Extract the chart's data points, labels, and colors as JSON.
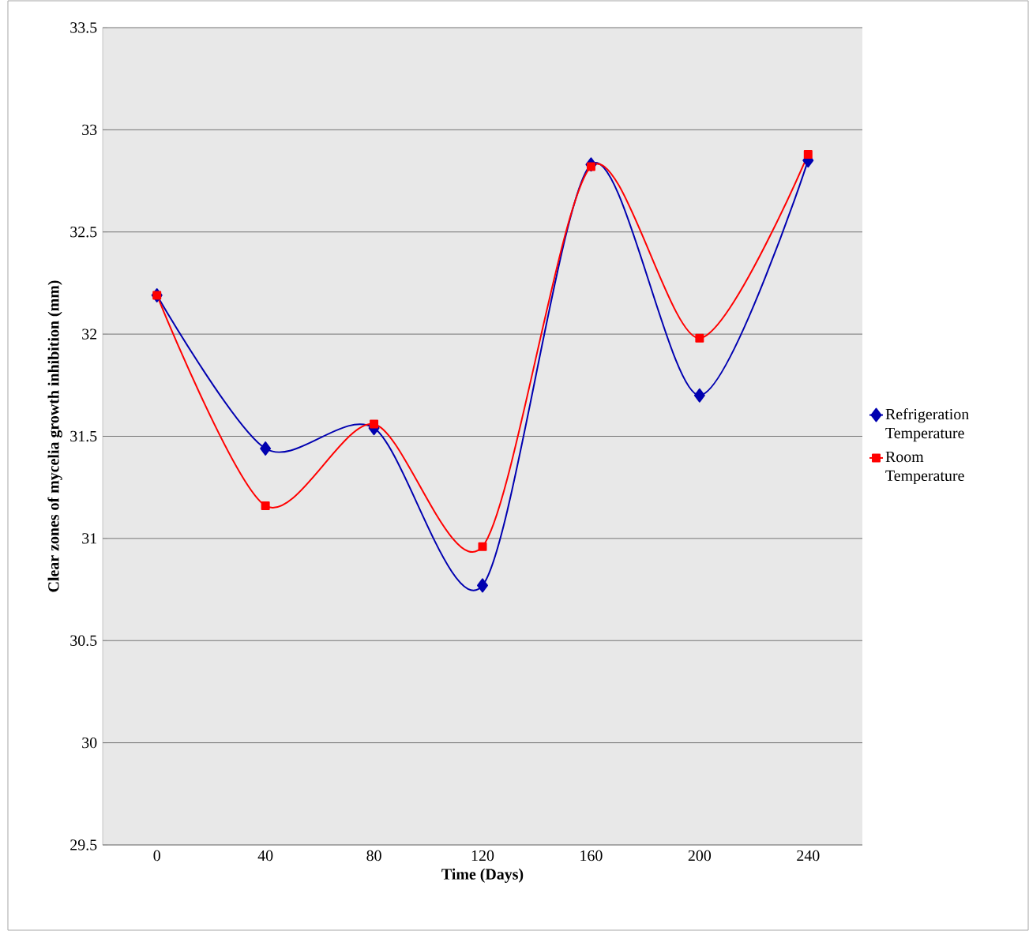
{
  "chart_data": {
    "type": "line",
    "xlabel": "Time (Days)",
    "ylabel": "Clear zones of mycelia growth inhibition (mm)",
    "categories": [
      "0",
      "40",
      "80",
      "120",
      "160",
      "200",
      "240"
    ],
    "series": [
      {
        "name": "Refrigeration Temperature",
        "color": "#0000b0",
        "marker": "diamond",
        "values": [
          32.19,
          31.44,
          31.54,
          30.77,
          32.83,
          31.7,
          32.85
        ]
      },
      {
        "name": "Room Temperature",
        "color": "#ff0000",
        "marker": "square",
        "values": [
          32.19,
          31.16,
          31.56,
          30.96,
          32.82,
          31.98,
          32.88
        ]
      }
    ],
    "ylim": [
      29.5,
      33.5
    ],
    "yticks": [
      29.5,
      30,
      30.5,
      31,
      31.5,
      32,
      32.5,
      33,
      33.5
    ],
    "grid": "y",
    "legend": "right",
    "line_style": "solid"
  }
}
